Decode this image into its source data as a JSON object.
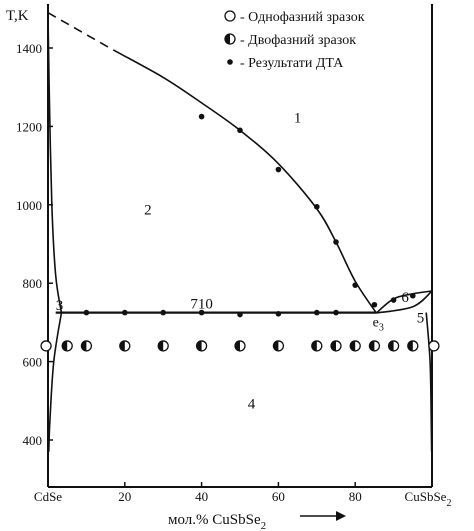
{
  "chart_data": {
    "type": "scatter",
    "title": "",
    "xlabel": "мол.% CuSbSe",
    "xlabel_subscript": "2",
    "ylabel": "T,K",
    "xlim": [
      0,
      100
    ],
    "ylim": [
      360,
      1500
    ],
    "x_ticks": [
      20,
      40,
      60,
      80
    ],
    "y_ticks": [
      400,
      600,
      800,
      1000,
      1200,
      1400
    ],
    "x_end_labels": {
      "left": "CdSe",
      "right": "CuSbSe",
      "right_subscript": "2"
    },
    "legend": [
      {
        "marker": "open-circle",
        "label": "- Однофазний зразок"
      },
      {
        "marker": "half-circle",
        "label": "- Двофазний зразок"
      },
      {
        "marker": "filled-dot",
        "label": "- Результати ДТА"
      }
    ],
    "legend_position": "top-right",
    "series": [
      {
        "name": "- Однофазний зразок",
        "marker": "open-circle",
        "points": [
          [
            -0.5,
            640
          ],
          [
            100.5,
            640
          ]
        ]
      },
      {
        "name": "- Двофазний зразок",
        "marker": "half-circle",
        "points": [
          [
            5,
            640
          ],
          [
            10,
            640
          ],
          [
            20,
            640
          ],
          [
            30,
            640
          ],
          [
            40,
            640
          ],
          [
            50,
            640
          ],
          [
            60,
            640
          ],
          [
            70,
            640
          ],
          [
            75,
            640
          ],
          [
            80,
            640
          ],
          [
            85,
            640
          ],
          [
            90,
            640
          ],
          [
            95,
            640
          ]
        ]
      },
      {
        "name": "- Результати ДТА",
        "marker": "filled-dot",
        "points": [
          [
            40,
            1225
          ],
          [
            50,
            1190
          ],
          [
            60,
            1090
          ],
          [
            70,
            995
          ],
          [
            75,
            905
          ],
          [
            80,
            795
          ],
          [
            10,
            725
          ],
          [
            20,
            725
          ],
          [
            30,
            725
          ],
          [
            40,
            725
          ],
          [
            50,
            720
          ],
          [
            60,
            722
          ],
          [
            70,
            725
          ],
          [
            75,
            725
          ],
          [
            85,
            745
          ],
          [
            90,
            757
          ],
          [
            95,
            768
          ]
        ]
      }
    ],
    "lines": [
      {
        "name": "liquidus-left",
        "style": "solid",
        "points": [
          [
            17,
            1395
          ],
          [
            30,
            1325
          ],
          [
            40,
            1260
          ],
          [
            50,
            1190
          ],
          [
            60,
            1105
          ],
          [
            70,
            990
          ],
          [
            75,
            905
          ],
          [
            80,
            805
          ],
          [
            85.5,
            724
          ]
        ]
      },
      {
        "name": "liquidus-extrapolated",
        "style": "dashed",
        "points": [
          [
            0,
            1490
          ],
          [
            17,
            1395
          ]
        ]
      },
      {
        "name": "eutectic-line",
        "style": "solid",
        "points": [
          [
            2,
            725
          ],
          [
            85.5,
            725
          ]
        ]
      },
      {
        "name": "liquidus-right",
        "style": "solid",
        "points": [
          [
            85.5,
            724
          ],
          [
            90,
            760
          ],
          [
            95,
            773
          ],
          [
            100,
            780
          ]
        ]
      },
      {
        "name": "solidus-right",
        "style": "solid",
        "points": [
          [
            85.5,
            724
          ],
          [
            95,
            740
          ],
          [
            100,
            780
          ]
        ]
      },
      {
        "name": "solidus-left",
        "style": "solid",
        "points": [
          [
            0,
            1485
          ],
          [
            0.3,
            1300
          ],
          [
            1,
            1000
          ],
          [
            2,
            820
          ],
          [
            3.5,
            725
          ]
        ]
      },
      {
        "name": "solvus-left",
        "style": "solid",
        "points": [
          [
            3.5,
            725
          ],
          [
            1.5,
            600
          ],
          [
            0.5,
            450
          ],
          [
            0.2,
            370
          ]
        ]
      },
      {
        "name": "solvus-right",
        "style": "solid",
        "points": [
          [
            98.5,
            725
          ],
          [
            99.5,
            600
          ],
          [
            99.8,
            450
          ],
          [
            99.9,
            370
          ]
        ]
      }
    ],
    "annotations": [
      {
        "text": "1",
        "x": 65,
        "y": 1210
      },
      {
        "text": "2",
        "x": 26,
        "y": 975
      },
      {
        "text": "3",
        "x": 3,
        "y": 732
      },
      {
        "text": "4",
        "x": 53,
        "y": 480
      },
      {
        "text": "5",
        "x": 97,
        "y": 700
      },
      {
        "text": "6",
        "x": 93,
        "y": 752
      },
      {
        "text": "710",
        "x": 40,
        "y": 735
      },
      {
        "text": "e",
        "subscript": "3",
        "x": 86,
        "y": 690
      }
    ]
  }
}
